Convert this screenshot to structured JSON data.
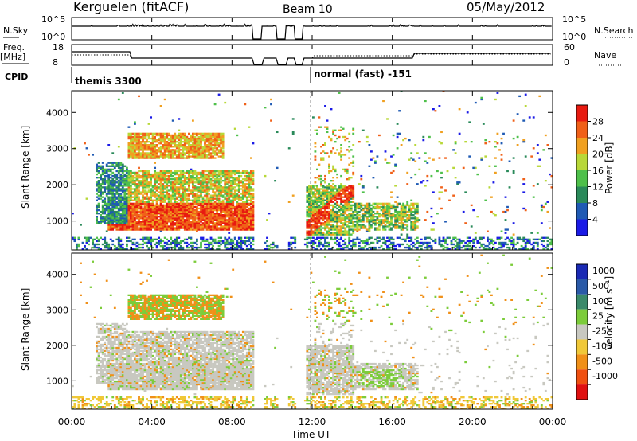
{
  "header": {
    "station": "Kerguelen (fitACF)",
    "beam": "Beam 10",
    "date": "05/May/2012"
  },
  "summary": {
    "nsky_label": "N.Sky",
    "nsky_ticks": [
      "10^5",
      "10^0"
    ],
    "nsearch_label": "N.Search",
    "nsearch_ticks": [
      "10^5",
      "10^0"
    ],
    "freq_label": "Freq.",
    "freq_unit": "[MHz]",
    "freq_ticks": [
      "18",
      "8"
    ],
    "nave_label": "Nave",
    "nave_ticks": [
      "60",
      "0"
    ],
    "cpid_label": "CPID",
    "cpid_segments": [
      {
        "start_h": 0,
        "label": "themis 3300"
      },
      {
        "start_h": 12.0,
        "label": "normal (fast) -151"
      }
    ],
    "data_gaps_h": [
      [
        9.0,
        9.5
      ],
      [
        10.25,
        10.7
      ],
      [
        11.15,
        11.55
      ]
    ]
  },
  "chart_data": [
    {
      "type": "heatmap",
      "panel": "power",
      "ylabel": "Slant Range [km]",
      "yticks": [
        "1000",
        "2000",
        "3000",
        "4000"
      ],
      "ylim": [
        200,
        4600
      ],
      "colorbar_label": "Power [dB]",
      "colorbar_ticks": [
        "4",
        "8",
        "12",
        "16",
        "20",
        "24",
        "28"
      ],
      "colors": [
        "#1a1ae6",
        "#1f5ab4",
        "#2a8a5a",
        "#4ec04a",
        "#b8d838",
        "#f0a020",
        "#f06018",
        "#e81a10"
      ]
    },
    {
      "type": "heatmap",
      "panel": "velocity",
      "ylabel": "Slant Range [km]",
      "yticks": [
        "1000",
        "2000",
        "3000",
        "4000"
      ],
      "ylim": [
        200,
        4600
      ],
      "colorbar_label": "Velocity [m s⁻¹]",
      "colorbar_ticks": [
        "1000",
        "500",
        "100",
        "25",
        "-25",
        "-100",
        "-500",
        "-1000"
      ],
      "colors": [
        "#1a2ab4",
        "#2a5aa8",
        "#3a8a6a",
        "#7ccc3a",
        "#c8c8c0",
        "#f0c838",
        "#f09018",
        "#f05010",
        "#e01010"
      ]
    }
  ],
  "time_axis": {
    "label": "Time UT",
    "ticks": [
      "00:00",
      "04:00",
      "08:00",
      "12:00",
      "16:00",
      "20:00",
      "00:00"
    ]
  }
}
